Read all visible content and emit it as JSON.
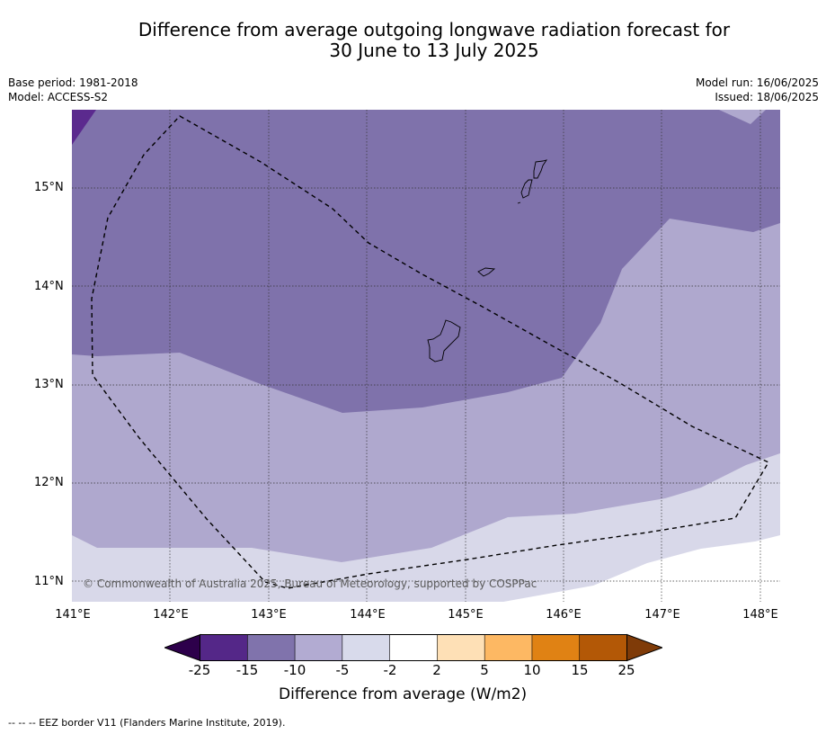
{
  "title": {
    "line1": "Difference from average outgoing longwave radiation forecast for",
    "line2": "30 June to 13 July 2025"
  },
  "meta": {
    "base_period": "Base period: 1981-2018",
    "model": "Model: ACCESS-S2",
    "model_run": "Model run: 16/06/2025",
    "issued": "Issued: 18/06/2025"
  },
  "map": {
    "copyright": "© Commonwealth of Australia 2025, Bureau of Meteorology, supported by COSPPac",
    "lat_labels": [
      "15°N",
      "14°N",
      "13°N",
      "12°N",
      "11°N"
    ],
    "lon_labels": [
      "141°E",
      "142°E",
      "143°E",
      "144°E",
      "145°E",
      "146°E",
      "147°E",
      "148°E"
    ],
    "colors": {
      "lt_-15": "#5b2a8e",
      "-15_-10": "#7f72ab",
      "-10_-5": "#afa8ce",
      "-5_-2": "#d8d8e9",
      "-2_2": "#ffffff",
      "border": "#000000"
    }
  },
  "colorbar": {
    "title": "Difference from average (W/m2)",
    "tick_labels": [
      "-25",
      "-15",
      "-10",
      "-5",
      "-2",
      "2",
      "5",
      "10",
      "15",
      "25"
    ],
    "colors": [
      "#2d004b",
      "#542788",
      "#8073ac",
      "#b2abd2",
      "#d8daeb",
      "#ffffff",
      "#fee0b6",
      "#fdb863",
      "#e08214",
      "#b35806",
      "#7f3b08"
    ]
  },
  "footnote": "--  --  -- EEZ border V11 (Flanders Marine Institute, 2019)."
}
